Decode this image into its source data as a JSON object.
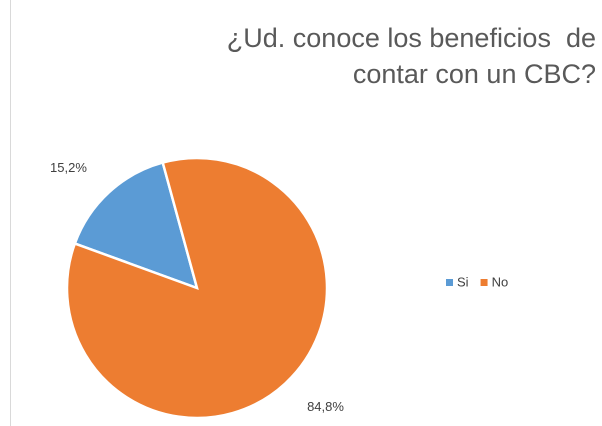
{
  "chart_data": {
    "type": "pie",
    "title": "¿Ud. conoce los beneficios  de contar con un CBC?",
    "categories": [
      "Si",
      "No"
    ],
    "values": [
      15.2,
      84.8
    ],
    "value_labels": [
      "15,2%",
      "84,8%"
    ],
    "colors": [
      "#5b9bd5",
      "#ed7d31"
    ],
    "legend": "right"
  }
}
